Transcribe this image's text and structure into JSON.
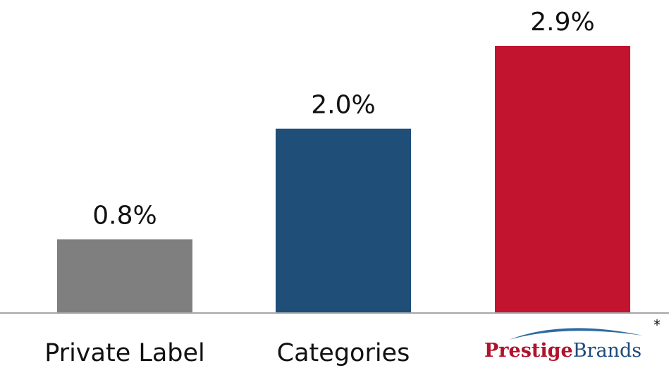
{
  "chart_data": {
    "type": "bar",
    "categories": [
      "Private Label",
      "Categories",
      "PrestigeBrands"
    ],
    "values": [
      0.8,
      2.0,
      2.9
    ],
    "value_labels": [
      "0.8%",
      "2.0%",
      "2.9%"
    ],
    "colors": [
      "#7f7f7f",
      "#1f4e79",
      "#c3142f"
    ],
    "title": "",
    "xlabel": "",
    "ylabel": "",
    "ylim": [
      0,
      2.9
    ],
    "grid": false,
    "legend": "none"
  },
  "brand_logo": {
    "part1": "Prestige",
    "part2": "Brands",
    "swoosh_color": "#2d6aa3"
  },
  "footnote_marker": "*"
}
